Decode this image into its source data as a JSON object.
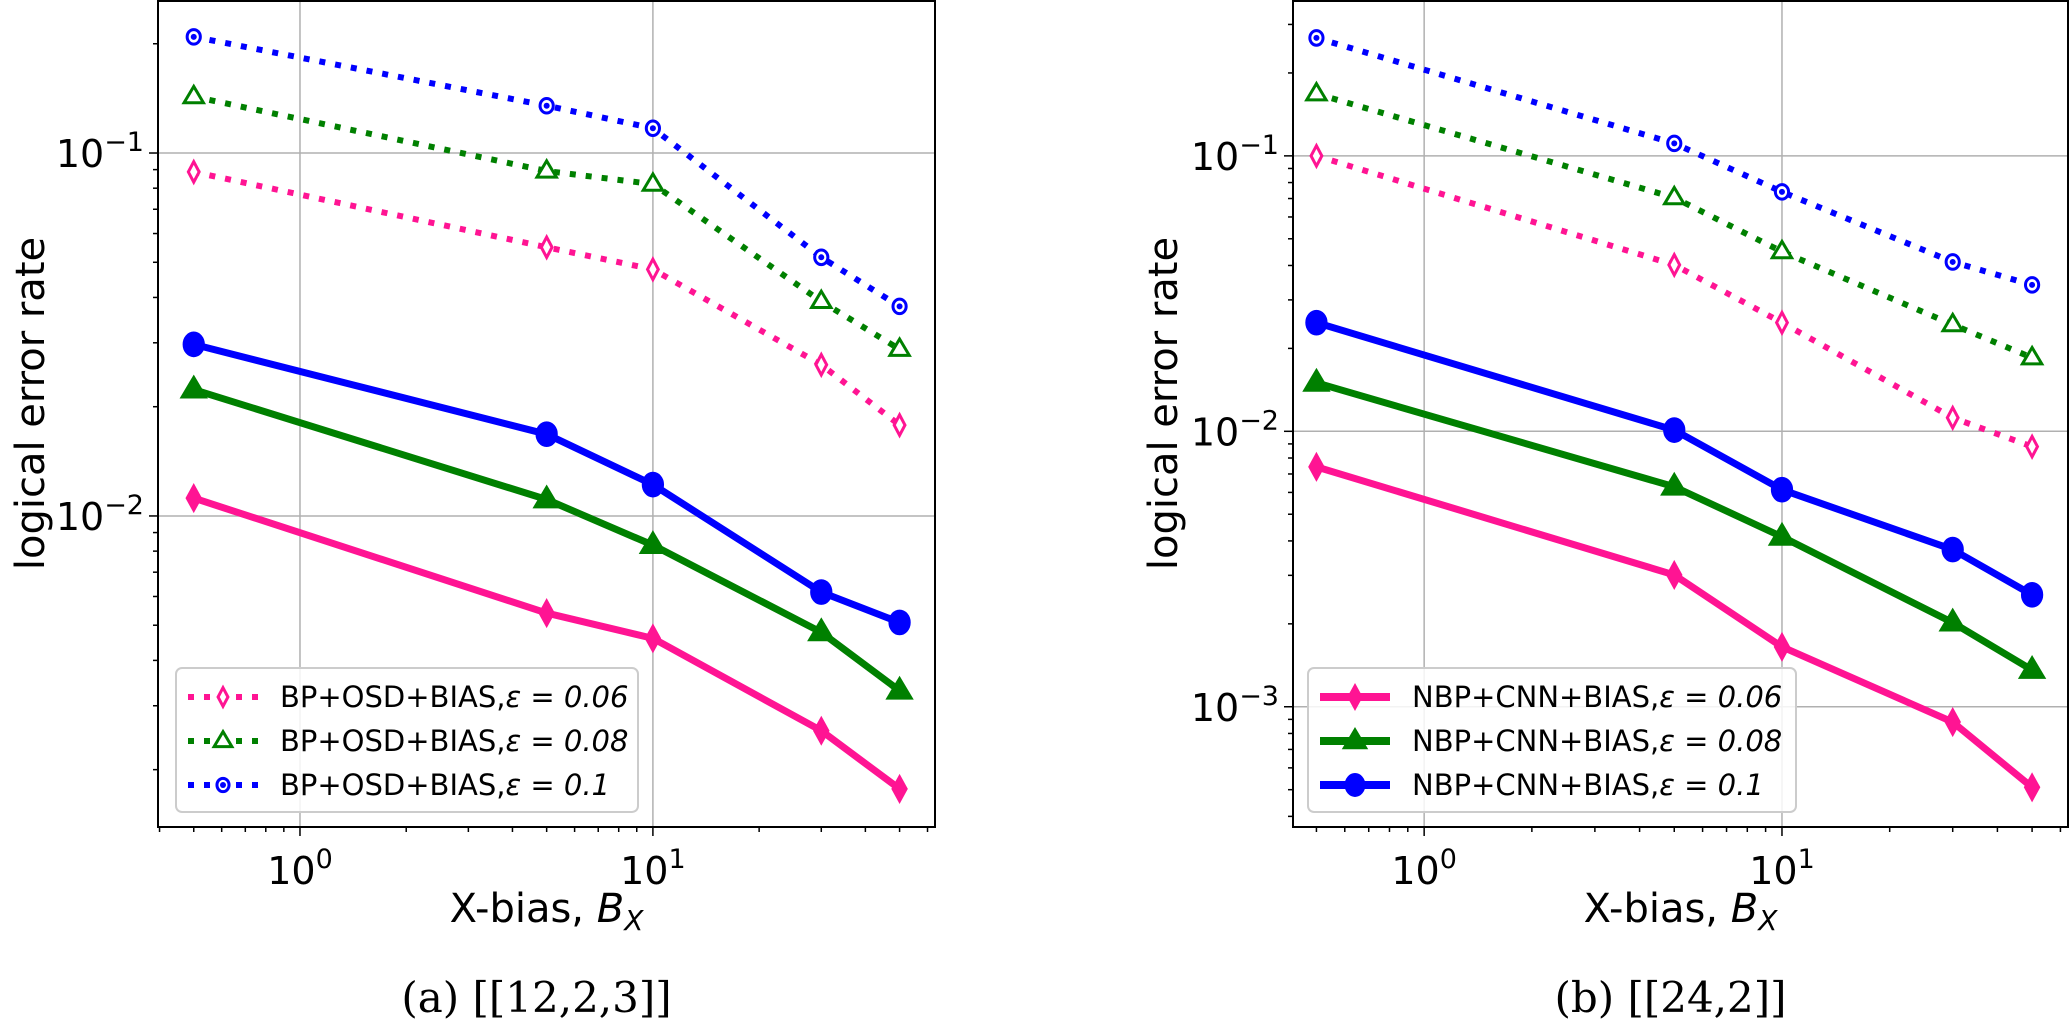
{
  "chart_data": [
    {
      "type": "line",
      "caption": "(a) [[12,2,3]]",
      "xlabel": "X-bias, B_X",
      "xlabel_main": "X-bias, ",
      "xlabel_var": "B",
      "xlabel_sub": "X",
      "ylabel": "logical error rate",
      "xscale": "log",
      "yscale": "log",
      "xlim": [
        0.396,
        63
      ],
      "ylim": [
        0.00139,
        0.264
      ],
      "grid": true,
      "legend_position": "lower-left",
      "x_ticks": [
        {
          "value": 1,
          "base": "10",
          "exp": "0"
        },
        {
          "value": 10,
          "base": "10",
          "exp": "1"
        }
      ],
      "y_ticks": [
        {
          "value": 0.1,
          "base": "10",
          "exp": "−1"
        },
        {
          "value": 0.01,
          "base": "10",
          "exp": "−2"
        }
      ],
      "x": [
        0.5,
        5,
        10,
        30,
        50
      ],
      "series": [
        {
          "name": "BP+OSD+BIAS,ε = 0.06",
          "label_main": "BP+OSD+BIAS,",
          "eps": "ε = 0.06",
          "color": "#ff1493",
          "style": "dotted",
          "marker": "diamond-open",
          "values": [
            0.0887,
            0.055,
            0.0478,
            0.0261,
            0.0178
          ]
        },
        {
          "name": "BP+OSD+BIAS,ε = 0.08",
          "label_main": "BP+OSD+BIAS,",
          "eps": "ε = 0.08",
          "color": "#008000",
          "style": "dotted",
          "marker": "triangle-open",
          "values": [
            0.143,
            0.0892,
            0.0821,
            0.039,
            0.0288
          ]
        },
        {
          "name": "BP+OSD+BIAS,ε = 0.1",
          "label_main": "BP+OSD+BIAS,",
          "eps": "ε = 0.1",
          "color": "#0000ff",
          "style": "dotted",
          "marker": "circle-open",
          "values": [
            0.209,
            0.135,
            0.117,
            0.0516,
            0.0378
          ]
        },
        {
          "name": "NBP+CNN+BIAS,ε = 0.06",
          "color": "#ff1493",
          "style": "solid",
          "marker": "diamond",
          "values": [
            0.0112,
            0.0054,
            0.0046,
            0.00256,
            0.00177
          ]
        },
        {
          "name": "NBP+CNN+BIAS,ε = 0.08",
          "color": "#008000",
          "style": "solid",
          "marker": "triangle",
          "values": [
            0.0223,
            0.0111,
            0.00831,
            0.00478,
            0.0033
          ]
        },
        {
          "name": "NBP+CNN+BIAS,ε = 0.1",
          "color": "#0000ff",
          "style": "solid",
          "marker": "circle",
          "values": [
            0.0297,
            0.0168,
            0.0122,
            0.00617,
            0.00509
          ]
        }
      ],
      "legend_series": [
        0,
        1,
        2
      ]
    },
    {
      "type": "line",
      "caption": "(b) [[24,2]]",
      "xlabel": "X-bias, B_X",
      "xlabel_main": "X-bias, ",
      "xlabel_var": "B",
      "xlabel_sub": "X",
      "ylabel": "logical error rate",
      "xscale": "log",
      "yscale": "log",
      "xlim": [
        0.43,
        63
      ],
      "ylim": [
        0.000366,
        0.368
      ],
      "grid": true,
      "legend_position": "lower-left",
      "x_ticks": [
        {
          "value": 1,
          "base": "10",
          "exp": "0"
        },
        {
          "value": 10,
          "base": "10",
          "exp": "1"
        }
      ],
      "y_ticks": [
        {
          "value": 0.1,
          "base": "10",
          "exp": "−1"
        },
        {
          "value": 0.01,
          "base": "10",
          "exp": "−2"
        },
        {
          "value": 0.001,
          "base": "10",
          "exp": "−3"
        }
      ],
      "x": [
        0.5,
        5,
        10,
        30,
        50
      ],
      "series": [
        {
          "name": "BP+OSD+BIAS,ε = 0.06",
          "color": "#ff1493",
          "style": "dotted",
          "marker": "diamond-open",
          "values": [
            0.1,
            0.0402,
            0.0248,
            0.0112,
            0.0088
          ]
        },
        {
          "name": "BP+OSD+BIAS,ε = 0.08",
          "color": "#008000",
          "style": "dotted",
          "marker": "triangle-open",
          "values": [
            0.168,
            0.0705,
            0.0449,
            0.0244,
            0.0185
          ]
        },
        {
          "name": "BP+OSD+BIAS,ε = 0.1",
          "color": "#0000ff",
          "style": "dotted",
          "marker": "circle-open",
          "values": [
            0.268,
            0.111,
            0.074,
            0.0412,
            0.034
          ]
        },
        {
          "name": "NBP+CNN+BIAS,ε = 0.06",
          "label_main": "NBP+CNN+BIAS,",
          "eps": "ε = 0.06",
          "color": "#ff1493",
          "style": "solid",
          "marker": "diamond",
          "values": [
            0.00743,
            0.00301,
            0.00165,
            0.00088,
            0.00051
          ]
        },
        {
          "name": "NBP+CNN+BIAS,ε = 0.08",
          "label_main": "NBP+CNN+BIAS,",
          "eps": "ε = 0.08",
          "color": "#008000",
          "style": "solid",
          "marker": "triangle",
          "values": [
            0.015,
            0.00629,
            0.00414,
            0.00202,
            0.00136
          ]
        },
        {
          "name": "NBP+CNN+BIAS,ε = 0.1",
          "label_main": "NBP+CNN+BIAS,",
          "eps": "ε = 0.1",
          "color": "#0000ff",
          "style": "solid",
          "marker": "circle",
          "values": [
            0.0248,
            0.0101,
            0.00614,
            0.00372,
            0.00255
          ]
        }
      ],
      "legend_series": [
        3,
        4,
        5
      ]
    }
  ]
}
